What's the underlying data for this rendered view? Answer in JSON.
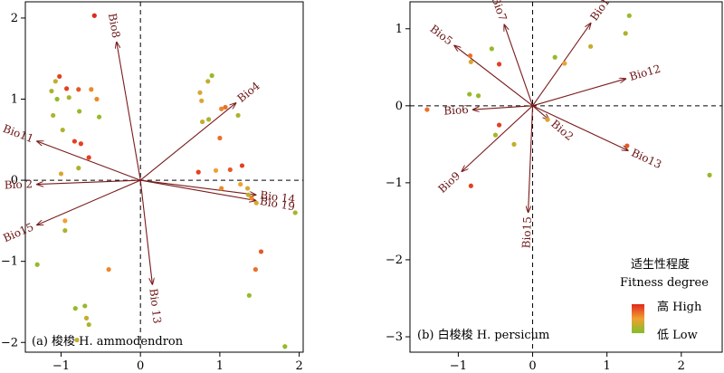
{
  "colors": {
    "arrow": "#7a1a1a",
    "high": "#e0281e",
    "mid": "#f0a030",
    "low": "#7fc02a"
  },
  "chart_data": [
    {
      "type": "scatter",
      "panel_label": "(a) 梭梭 H. ammodendron",
      "xlim": [
        -1.45,
        2.05
      ],
      "ylim": [
        -2.12,
        2.2
      ],
      "xticks": [
        -1,
        0,
        1,
        2
      ],
      "yticks": [
        -2,
        -1,
        0,
        1,
        2
      ],
      "vectors": [
        {
          "label": "Bio8",
          "x": -0.3,
          "y": 1.7
        },
        {
          "label": "Bio4",
          "x": 1.2,
          "y": 0.95
        },
        {
          "label": "Bio11",
          "x": -1.3,
          "y": 0.48
        },
        {
          "label": "Bio 2",
          "x": -1.3,
          "y": -0.05
        },
        {
          "label": "Bio15",
          "x": -1.3,
          "y": -0.55
        },
        {
          "label": "Bio 14",
          "x": 1.45,
          "y": -0.18
        },
        {
          "label": "Bio 19",
          "x": 1.45,
          "y": -0.25
        },
        {
          "label": "Bio 13",
          "x": 0.15,
          "y": -1.28
        }
      ],
      "points": [
        {
          "x": -0.58,
          "y": 2.03,
          "f": 1.0
        },
        {
          "x": -1.02,
          "y": 1.28,
          "f": 0.9
        },
        {
          "x": -1.07,
          "y": 1.22,
          "f": 0.3
        },
        {
          "x": -1.12,
          "y": 1.1,
          "f": 0.2
        },
        {
          "x": -0.93,
          "y": 1.13,
          "f": 0.9
        },
        {
          "x": -0.78,
          "y": 1.12,
          "f": 0.8
        },
        {
          "x": -0.62,
          "y": 1.12,
          "f": 0.6
        },
        {
          "x": -1.05,
          "y": 1.0,
          "f": 0.1
        },
        {
          "x": -0.9,
          "y": 1.02,
          "f": 0.2
        },
        {
          "x": -0.55,
          "y": 1.0,
          "f": 0.6
        },
        {
          "x": -1.1,
          "y": 0.8,
          "f": 0.2
        },
        {
          "x": -0.77,
          "y": 0.85,
          "f": 0.1
        },
        {
          "x": -0.52,
          "y": 0.78,
          "f": 0.1
        },
        {
          "x": -0.98,
          "y": 0.62,
          "f": 0.2
        },
        {
          "x": -0.83,
          "y": 0.48,
          "f": 0.9
        },
        {
          "x": -0.75,
          "y": 0.45,
          "f": 0.9
        },
        {
          "x": -0.65,
          "y": 0.28,
          "f": 0.9
        },
        {
          "x": -0.78,
          "y": 0.15,
          "f": 0.2
        },
        {
          "x": -1.0,
          "y": 0.08,
          "f": 0.4
        },
        {
          "x": -0.95,
          "y": -0.5,
          "f": 0.5
        },
        {
          "x": -0.95,
          "y": -0.62,
          "f": 0.2
        },
        {
          "x": -1.3,
          "y": -1.04,
          "f": 0.1
        },
        {
          "x": -0.4,
          "y": -1.1,
          "f": 0.6
        },
        {
          "x": -0.82,
          "y": -1.58,
          "f": 0.1
        },
        {
          "x": -0.7,
          "y": -1.55,
          "f": 0.1
        },
        {
          "x": -0.68,
          "y": -1.7,
          "f": 0.3
        },
        {
          "x": -0.65,
          "y": -1.78,
          "f": 0.2
        },
        {
          "x": -0.8,
          "y": -1.97,
          "f": 0.3
        },
        {
          "x": 0.9,
          "y": 1.29,
          "f": 0.1
        },
        {
          "x": 0.85,
          "y": 1.22,
          "f": 0.3
        },
        {
          "x": 0.75,
          "y": 1.08,
          "f": 0.4
        },
        {
          "x": 0.77,
          "y": 0.98,
          "f": 0.4
        },
        {
          "x": 1.02,
          "y": 0.88,
          "f": 0.6
        },
        {
          "x": 1.07,
          "y": 0.9,
          "f": 0.7
        },
        {
          "x": 0.78,
          "y": 0.72,
          "f": 0.3
        },
        {
          "x": 0.86,
          "y": 0.75,
          "f": 0.2
        },
        {
          "x": 1.23,
          "y": 0.8,
          "f": 0.2
        },
        {
          "x": 1.0,
          "y": 0.52,
          "f": 0.7
        },
        {
          "x": 0.73,
          "y": 0.1,
          "f": 0.9
        },
        {
          "x": 0.95,
          "y": 0.12,
          "f": 0.5
        },
        {
          "x": 1.13,
          "y": 0.13,
          "f": 0.8
        },
        {
          "x": 1.28,
          "y": 0.18,
          "f": 0.9
        },
        {
          "x": 1.26,
          "y": -0.05,
          "f": 0.5
        },
        {
          "x": 1.35,
          "y": -0.1,
          "f": 0.4
        },
        {
          "x": 1.02,
          "y": -0.1,
          "f": 0.6
        },
        {
          "x": 1.36,
          "y": -0.18,
          "f": 0.3
        },
        {
          "x": 1.4,
          "y": -0.22,
          "f": 0.6
        },
        {
          "x": 1.46,
          "y": -0.28,
          "f": 0.4
        },
        {
          "x": 1.95,
          "y": -0.4,
          "f": 0.2
        },
        {
          "x": 1.52,
          "y": -0.88,
          "f": 0.8
        },
        {
          "x": 1.45,
          "y": -1.1,
          "f": 0.7
        },
        {
          "x": 1.37,
          "y": -1.42,
          "f": 0.1
        },
        {
          "x": 1.82,
          "y": -2.05,
          "f": 0.1
        }
      ]
    },
    {
      "type": "scatter",
      "panel_label": "(b) 白梭梭 H. persicum",
      "xlim": [
        -1.65,
        2.55
      ],
      "ylim": [
        -3.2,
        1.35
      ],
      "xticks": [
        -1,
        0,
        1,
        2
      ],
      "yticks": [
        -3,
        -2,
        -1,
        0,
        1
      ],
      "vectors": [
        {
          "label": "Bio7",
          "x": -0.38,
          "y": 1.05
        },
        {
          "label": "Bio19",
          "x": 0.78,
          "y": 1.07
        },
        {
          "label": "Bio5",
          "x": -1.05,
          "y": 0.78
        },
        {
          "label": "Bio12",
          "x": 1.25,
          "y": 0.35
        },
        {
          "label": "Bio6",
          "x": -0.8,
          "y": -0.05
        },
        {
          "label": "Bio2",
          "x": 0.22,
          "y": -0.18
        },
        {
          "label": "Bio13",
          "x": 1.28,
          "y": -0.58
        },
        {
          "label": "Bio9",
          "x": -0.95,
          "y": -0.85
        },
        {
          "label": "Bio15",
          "x": -0.06,
          "y": -1.38
        }
      ],
      "points": [
        {
          "x": 1.3,
          "y": 1.17,
          "f": 0.1
        },
        {
          "x": 1.25,
          "y": 0.94,
          "f": 0.2
        },
        {
          "x": 0.78,
          "y": 0.77,
          "f": 0.3
        },
        {
          "x": -0.55,
          "y": 0.74,
          "f": 0.1
        },
        {
          "x": 0.3,
          "y": 0.63,
          "f": 0.1
        },
        {
          "x": 0.43,
          "y": 0.55,
          "f": 0.5
        },
        {
          "x": -0.84,
          "y": 0.65,
          "f": 0.7
        },
        {
          "x": -0.83,
          "y": 0.57,
          "f": 0.4
        },
        {
          "x": -0.45,
          "y": 0.54,
          "f": 0.9
        },
        {
          "x": -0.85,
          "y": 0.15,
          "f": 0.1
        },
        {
          "x": -0.73,
          "y": 0.13,
          "f": 0.1
        },
        {
          "x": -1.42,
          "y": -0.05,
          "f": 0.7
        },
        {
          "x": -0.45,
          "y": -0.25,
          "f": 0.9
        },
        {
          "x": -0.5,
          "y": -0.38,
          "f": 0.2
        },
        {
          "x": -0.25,
          "y": -0.5,
          "f": 0.3
        },
        {
          "x": 1.27,
          "y": -0.52,
          "f": 0.8
        },
        {
          "x": 2.38,
          "y": -0.9,
          "f": 0.1
        },
        {
          "x": -0.83,
          "y": -1.04,
          "f": 0.9
        },
        {
          "x": 0.2,
          "y": -0.18,
          "f": 0.4
        }
      ]
    }
  ],
  "legend": {
    "title_cn": "适生性程度",
    "title_en": "Fitness degree",
    "high": "高 High",
    "low": "低 Low"
  }
}
